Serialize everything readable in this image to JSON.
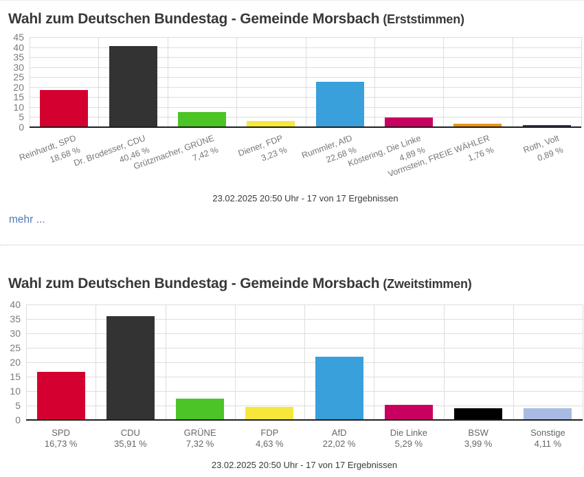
{
  "section1": {
    "title": "Wahl zum Deutschen Bundestag - Gemeinde Morsbach",
    "title_suffix": "(Erststimmen)",
    "caption": "23.02.2025 20:50 Uhr - 17 von 17 Ergebnissen",
    "more_label": "mehr ...",
    "chart_data": {
      "type": "bar",
      "categories": [
        "Reinhardt, SPD",
        "Dr. Brodesser, CDU",
        "Grützmacher, GRÜNE",
        "Diener, FDP",
        "Rummler, AfD",
        "Köstering, Die Linke",
        "Vormstein, FREIE WÄHLER",
        "Roth, Volt"
      ],
      "value_labels": [
        "18,68 %",
        "40,46 %",
        "7,42 %",
        "3,23 %",
        "22,68 %",
        "4,89 %",
        "1,76 %",
        "0,89 %"
      ],
      "values": [
        18.68,
        40.46,
        7.42,
        3.23,
        22.68,
        4.89,
        1.76,
        0.89
      ],
      "colors": [
        "#d40030",
        "#333333",
        "#4cc426",
        "#f7e73b",
        "#3aa0dc",
        "#c8005f",
        "#e8941f",
        "#3a2a52"
      ],
      "title": "Wahl zum Deutschen Bundestag - Gemeinde Morsbach (Erststimmen)",
      "xlabel": "",
      "ylabel": "",
      "ylim": [
        0,
        45
      ],
      "ytick_step": 5,
      "grid": true,
      "legend": "none",
      "xlabel_rotation": -20
    }
  },
  "section2": {
    "title": "Wahl zum Deutschen Bundestag - Gemeinde Morsbach",
    "title_suffix": "(Zweitstimmen)",
    "caption": "23.02.2025 20:50 Uhr - 17 von 17 Ergebnissen",
    "chart_data": {
      "type": "bar",
      "categories": [
        "SPD",
        "CDU",
        "GRÜNE",
        "FDP",
        "AfD",
        "Die Linke",
        "BSW",
        "Sonstige"
      ],
      "value_labels": [
        "16,73 %",
        "35,91 %",
        "7,32 %",
        "4,63 %",
        "22,02 %",
        "5,29 %",
        "3,99 %",
        "4,11 %"
      ],
      "values": [
        16.73,
        35.91,
        7.32,
        4.63,
        22.02,
        5.29,
        3.99,
        4.11
      ],
      "colors": [
        "#d40030",
        "#333333",
        "#4cc426",
        "#f7e73b",
        "#3aa0dc",
        "#c8005f",
        "#000000",
        "#a9bbe3"
      ],
      "title": "Wahl zum Deutschen Bundestag - Gemeinde Morsbach (Zweitstimmen)",
      "xlabel": "",
      "ylabel": "",
      "ylim": [
        0,
        40
      ],
      "ytick_step": 5,
      "grid": true,
      "legend": "none",
      "xlabel_rotation": 0
    }
  }
}
